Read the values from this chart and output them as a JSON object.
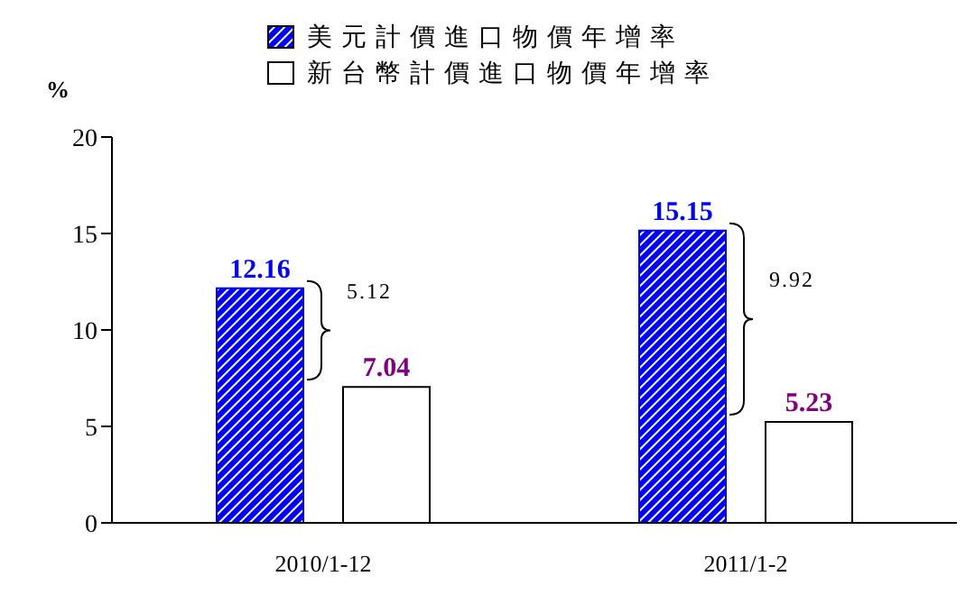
{
  "chart_data": {
    "type": "bar",
    "ylabel": "%",
    "categories": [
      "2010/1-12",
      "2011/1-2"
    ],
    "series": [
      {
        "name": "美元計價進口物價年增率",
        "color": "#0000ff",
        "values": [
          12.16,
          15.15
        ]
      },
      {
        "name": "新台幣計價進口物價年增率",
        "color": "#ffffff",
        "values": [
          7.04,
          5.23
        ]
      }
    ],
    "ylim": [
      0,
      20
    ],
    "yticks": [
      0,
      5,
      10,
      15,
      20
    ],
    "legend": "top",
    "data_labels": true,
    "annotations": [
      "5.12",
      "9.92"
    ]
  }
}
